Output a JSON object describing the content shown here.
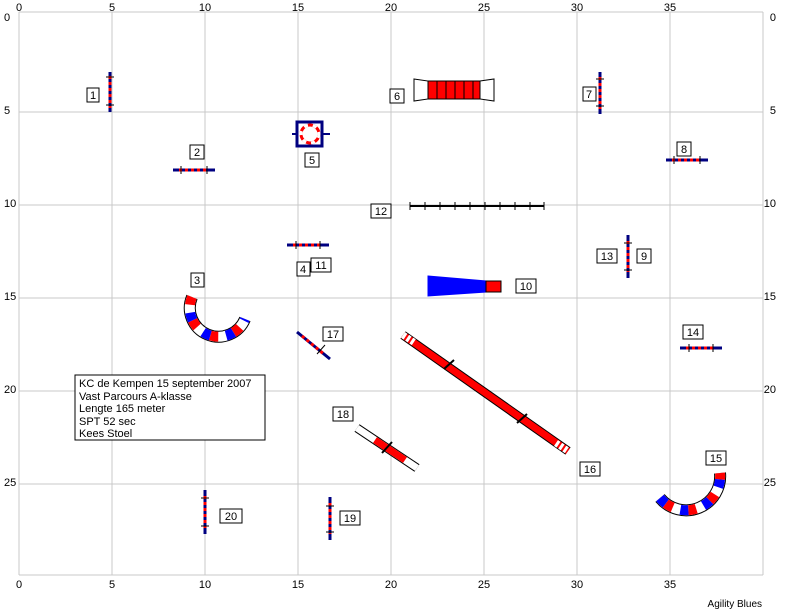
{
  "course": {
    "info_lines": [
      "KC de Kempen 15 september 2007",
      "Vast Parcours A-klasse",
      "Lengte 165 meter",
      "SPT 52 sec",
      "Kees Stoel"
    ],
    "footer": "Agility Blues",
    "x_ticks": [
      "0",
      "5",
      "10",
      "15",
      "20",
      "25",
      "30",
      "35"
    ],
    "y_ticks": [
      "0",
      "5",
      "10",
      "15",
      "20",
      "25"
    ],
    "obstacles": [
      {
        "number": "1",
        "type": "jump"
      },
      {
        "number": "2",
        "type": "jump"
      },
      {
        "number": "3",
        "type": "tunnel"
      },
      {
        "number": "4",
        "type": "jump"
      },
      {
        "number": "5",
        "type": "tire"
      },
      {
        "number": "6",
        "type": "chute"
      },
      {
        "number": "7",
        "type": "jump"
      },
      {
        "number": "8",
        "type": "jump"
      },
      {
        "number": "9",
        "type": "jump"
      },
      {
        "number": "10",
        "type": "chute"
      },
      {
        "number": "11",
        "type": "jump"
      },
      {
        "number": "12",
        "type": "weave-poles"
      },
      {
        "number": "13",
        "type": "jump"
      },
      {
        "number": "14",
        "type": "jump"
      },
      {
        "number": "15",
        "type": "tunnel"
      },
      {
        "number": "16",
        "type": "dog-walk"
      },
      {
        "number": "17",
        "type": "jump"
      },
      {
        "number": "18",
        "type": "seesaw"
      },
      {
        "number": "19",
        "type": "jump"
      },
      {
        "number": "20",
        "type": "jump"
      }
    ]
  },
  "colors": {
    "grid": "#c8c8c8",
    "red": "#ff0000",
    "blue": "#0000ff",
    "navy": "#000080",
    "white": "#ffffff"
  }
}
